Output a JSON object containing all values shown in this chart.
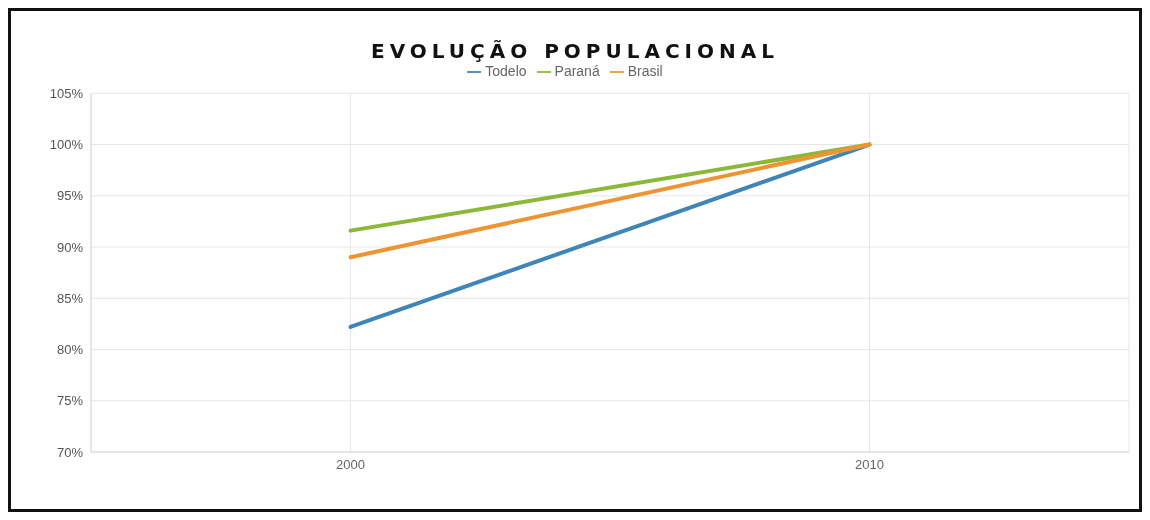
{
  "chart_data": {
    "type": "line",
    "title": "EVOLUÇÃO POPULACIONAL",
    "categories": [
      "2000",
      "2010"
    ],
    "series": [
      {
        "name": "Todelo",
        "color": "#3e85b8",
        "values": [
          82.2,
          100
        ]
      },
      {
        "name": "Paraná",
        "color": "#8cb83a",
        "values": [
          91.6,
          100
        ]
      },
      {
        "name": "Brasil",
        "color": "#ee9433",
        "values": [
          89.0,
          100
        ]
      }
    ],
    "ylim": [
      70,
      105
    ],
    "yticks": [
      {
        "value": 70,
        "label": "70%"
      },
      {
        "value": 75,
        "label": "75%"
      },
      {
        "value": 80,
        "label": "80%"
      },
      {
        "value": 85,
        "label": "85%"
      },
      {
        "value": 90,
        "label": "90%"
      },
      {
        "value": 95,
        "label": "95%"
      },
      {
        "value": 100,
        "label": "100%"
      },
      {
        "value": 105,
        "label": "105%"
      }
    ],
    "grid": true,
    "legend": "top",
    "marker": "none",
    "line_style": "solid"
  }
}
